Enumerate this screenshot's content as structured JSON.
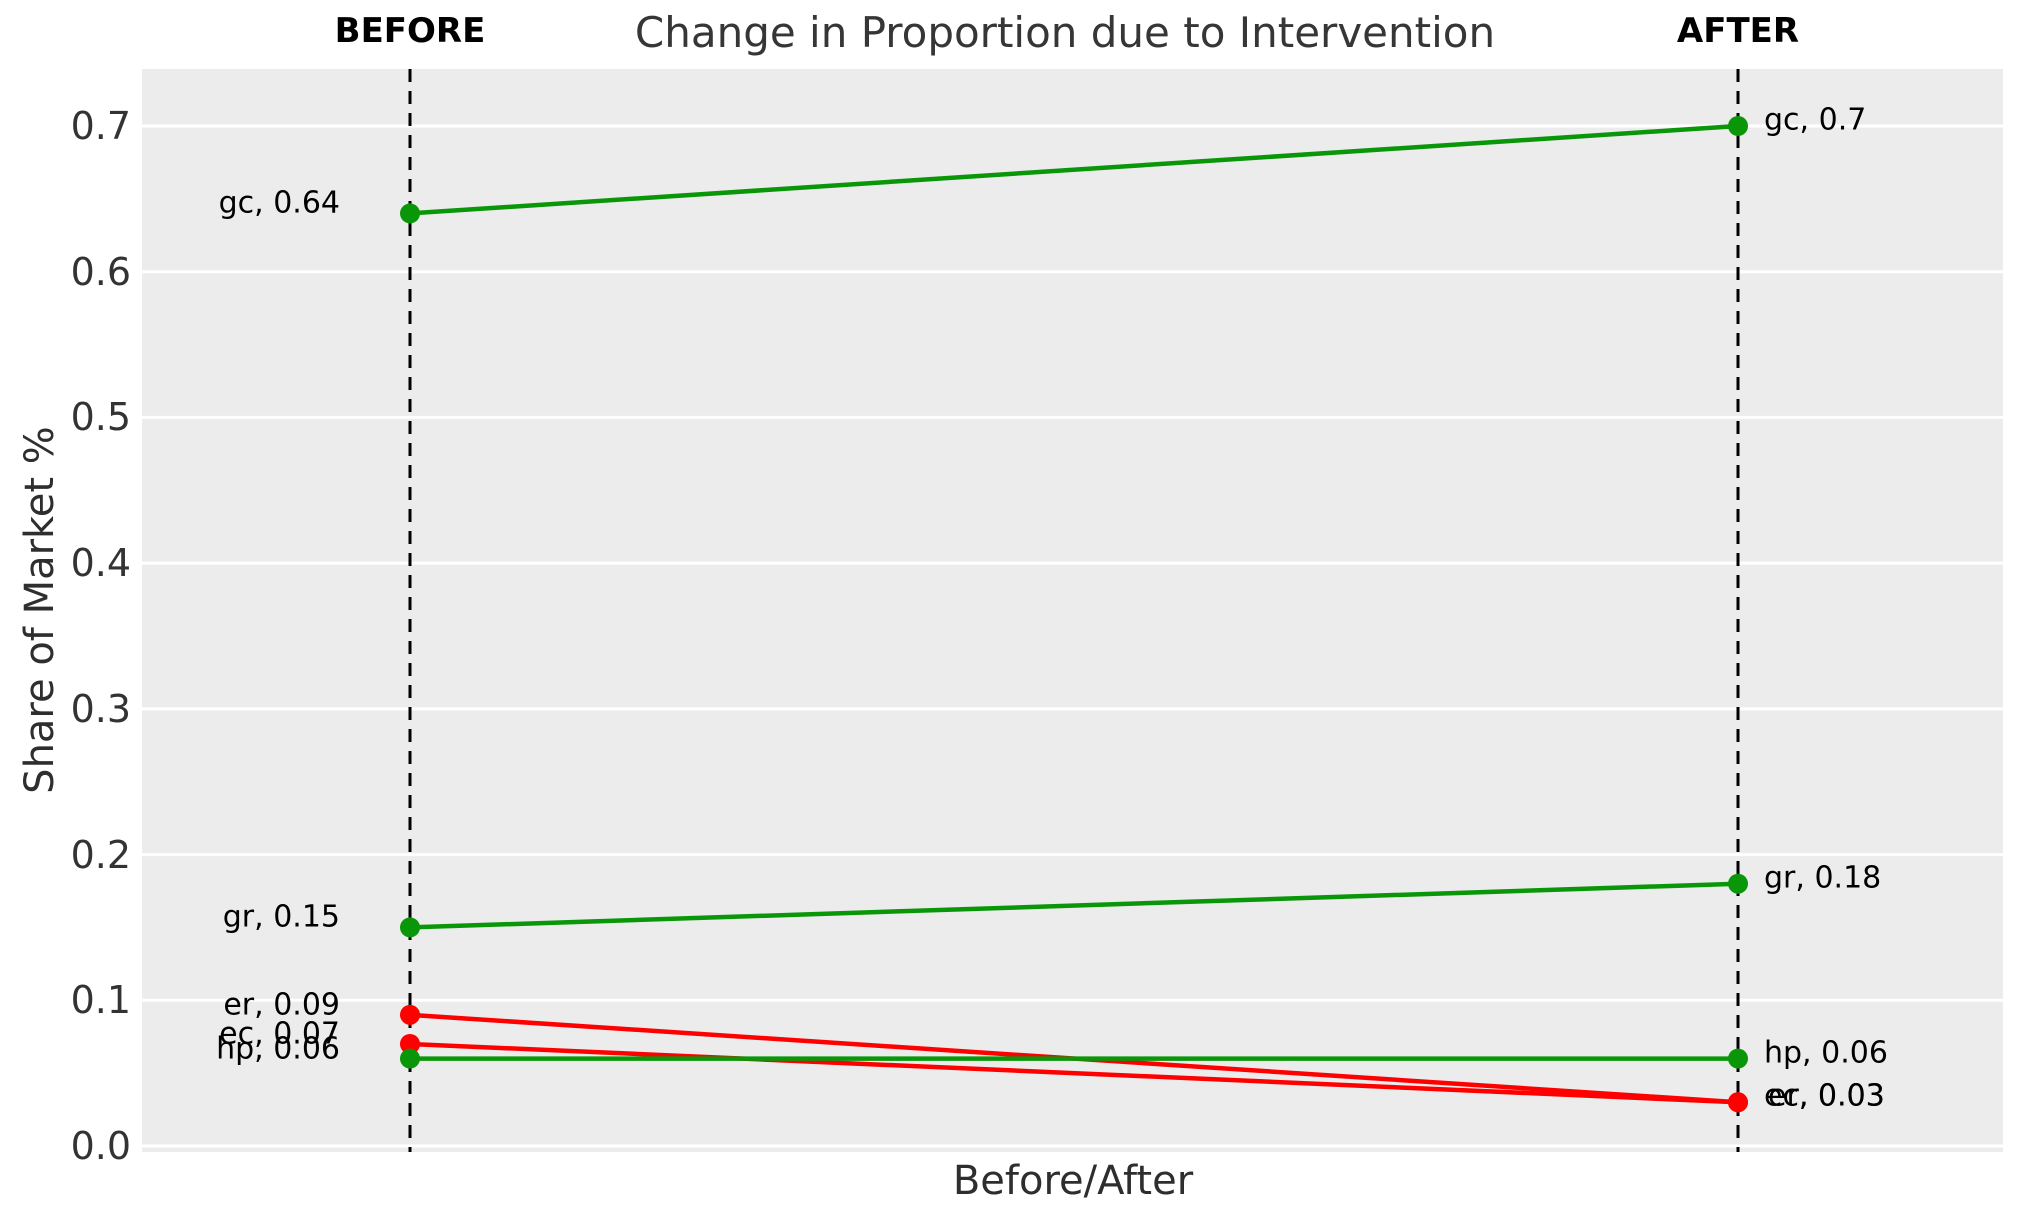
{
  "chart_data": {
    "type": "line",
    "subtype": "slopegraph",
    "title": "Change in Proportion due to Intervention",
    "xlabel": "Before/After",
    "ylabel": "Share of Market %",
    "categories": [
      "BEFORE",
      "AFTER"
    ],
    "yticks": [
      0.0,
      0.1,
      0.2,
      0.3,
      0.4,
      0.5,
      0.6,
      0.7
    ],
    "ylim": [
      -0.004,
      0.739
    ],
    "grid": true,
    "legend": false,
    "series": [
      {
        "name": "gc",
        "values": [
          0.64,
          0.7
        ],
        "trend": "increase",
        "labels": [
          "gc, 0.64",
          "gc, 0.7"
        ]
      },
      {
        "name": "gr",
        "values": [
          0.15,
          0.18
        ],
        "trend": "increase",
        "labels": [
          "gr, 0.15",
          "gr, 0.18"
        ]
      },
      {
        "name": "er",
        "values": [
          0.09,
          0.03
        ],
        "trend": "decrease",
        "labels": [
          "er, 0.09",
          "er, 0.03"
        ]
      },
      {
        "name": "ec",
        "values": [
          0.07,
          0.03
        ],
        "trend": "decrease",
        "labels": [
          "ec, 0.07",
          "ec, 0.03"
        ]
      },
      {
        "name": "hp",
        "values": [
          0.06,
          0.06
        ],
        "trend": "increase",
        "labels": [
          "hp, 0.06",
          "hp, 0.06"
        ]
      }
    ],
    "styles": {
      "plot_bg": "#ececec",
      "grid_color": "#ffffff",
      "increase_color": "#0a9609",
      "decrease_color": "#ff0000",
      "guide_line_color": "#000000",
      "text_color": "#363636",
      "label_color": "#000000"
    }
  }
}
